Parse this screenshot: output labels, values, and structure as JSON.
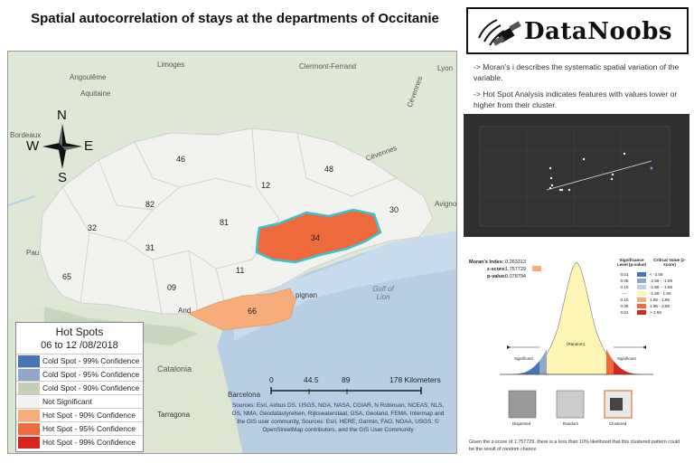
{
  "title": "Spatial autocorrelation of stays at the departments of Occitanie",
  "map": {
    "places": {
      "angouleme": "Angoulême",
      "aquitaine": "Aquitaine",
      "limoges": "Limoges",
      "clermont": "Clermont-Ferrand",
      "lyon": "Lyon",
      "cevennes": "Cévennes",
      "bordeaux": "Bordeaux",
      "cevennes2": "Cévennes",
      "avignon": "Avignon",
      "pau": "Pau",
      "gulf": "Gulf of Lion",
      "pignan": "pignan",
      "andorra": "And",
      "catalonia": "Catalonia",
      "barcelona": "Barcelona",
      "tarragona": "Tarragona"
    },
    "departments": [
      {
        "code": "46"
      },
      {
        "code": "48"
      },
      {
        "code": "12"
      },
      {
        "code": "82"
      },
      {
        "code": "30"
      },
      {
        "code": "32"
      },
      {
        "code": "81"
      },
      {
        "code": "34"
      },
      {
        "code": "31"
      },
      {
        "code": "65"
      },
      {
        "code": "11"
      },
      {
        "code": "09"
      },
      {
        "code": "66"
      }
    ],
    "compass": {
      "n": "N",
      "s": "S",
      "e": "E",
      "w": "W"
    }
  },
  "legend": {
    "title": "Hot Spots",
    "dates": "06 to 12 /08/2018",
    "items": [
      {
        "label": "Cold Spot - 99% Confidence",
        "color": "#4575b4"
      },
      {
        "label": "Cold Spot - 95% Confidence",
        "color": "#91a7c9"
      },
      {
        "label": "Cold Spot - 90% Confidence",
        "color": "#c4cfb7"
      },
      {
        "label": "Not Significant",
        "color": "#f2f2f0"
      },
      {
        "label": "Hot Spot - 90% Confidence",
        "color": "#f6ad7a"
      },
      {
        "label": "Hot Spot - 95% Confidence",
        "color": "#ee6a3c"
      },
      {
        "label": "Hot Spot - 99% Confidence",
        "color": "#d7261e"
      }
    ]
  },
  "scalebar": {
    "ticks": [
      "0",
      "44.5",
      "89",
      "178 Kilometers"
    ]
  },
  "credits": "Sources: Esri, Airbus DS, USGS, NGA, NASA, CGIAR, N Robinson, NCEAS, NLS, OS, NMA, Geodatastyrelsen, Rijkswaterstaat, GSA, Geoland, FEMA, Intermap and the GIS user community, Sources: Esri, HERE, Garmin, FAO, NOAA, USGS, © OpenStreetMap contributors, and the GIS User Community",
  "logo": {
    "text": "DataNoobs"
  },
  "notes": [
    "-> Moran's i describes the systematic spatial variation of the variable.",
    "-> Hot Spot Analysis indicates features with values lower or higher from their cluster."
  ],
  "report": {
    "morans_label": "Moran's Index:",
    "morans_value": "0.263313",
    "z_label": "z-score:",
    "z_value": "1.757729",
    "p_label": "p-value:",
    "p_value": "0.078794",
    "sig_header": "Significance Level (p-value)",
    "crit_header": "Critical Value (z-score)",
    "sig_rows": [
      {
        "p": "0.01",
        "z": "< -2.58",
        "color": "#4575b4"
      },
      {
        "p": "0.05",
        "z": "-2.58 - -1.96",
        "color": "#91a7c9"
      },
      {
        "p": "0.10",
        "z": "-1.96 - -1.65",
        "color": "#c4cfe0"
      },
      {
        "p": "---",
        "z": "-1.65 - 1.65",
        "color": "#fff5b5"
      },
      {
        "p": "0.10",
        "z": "1.65 - 1.96",
        "color": "#f6ad7a"
      },
      {
        "p": "0.05",
        "z": "1.96 - 2.58",
        "color": "#ee6a3c"
      },
      {
        "p": "0.01",
        "z": "> 2.58",
        "color": "#d7261e"
      }
    ],
    "significant_left": "Significant",
    "random": "(Random)",
    "significant_right": "Significant",
    "dispersed": "Dispersed",
    "random_label": "Random",
    "clustered": "Clustered",
    "summary": "Given the z-score of 1.757729, there is a less than 10% likelihood that this clustered pattern could be the result of random chance."
  }
}
